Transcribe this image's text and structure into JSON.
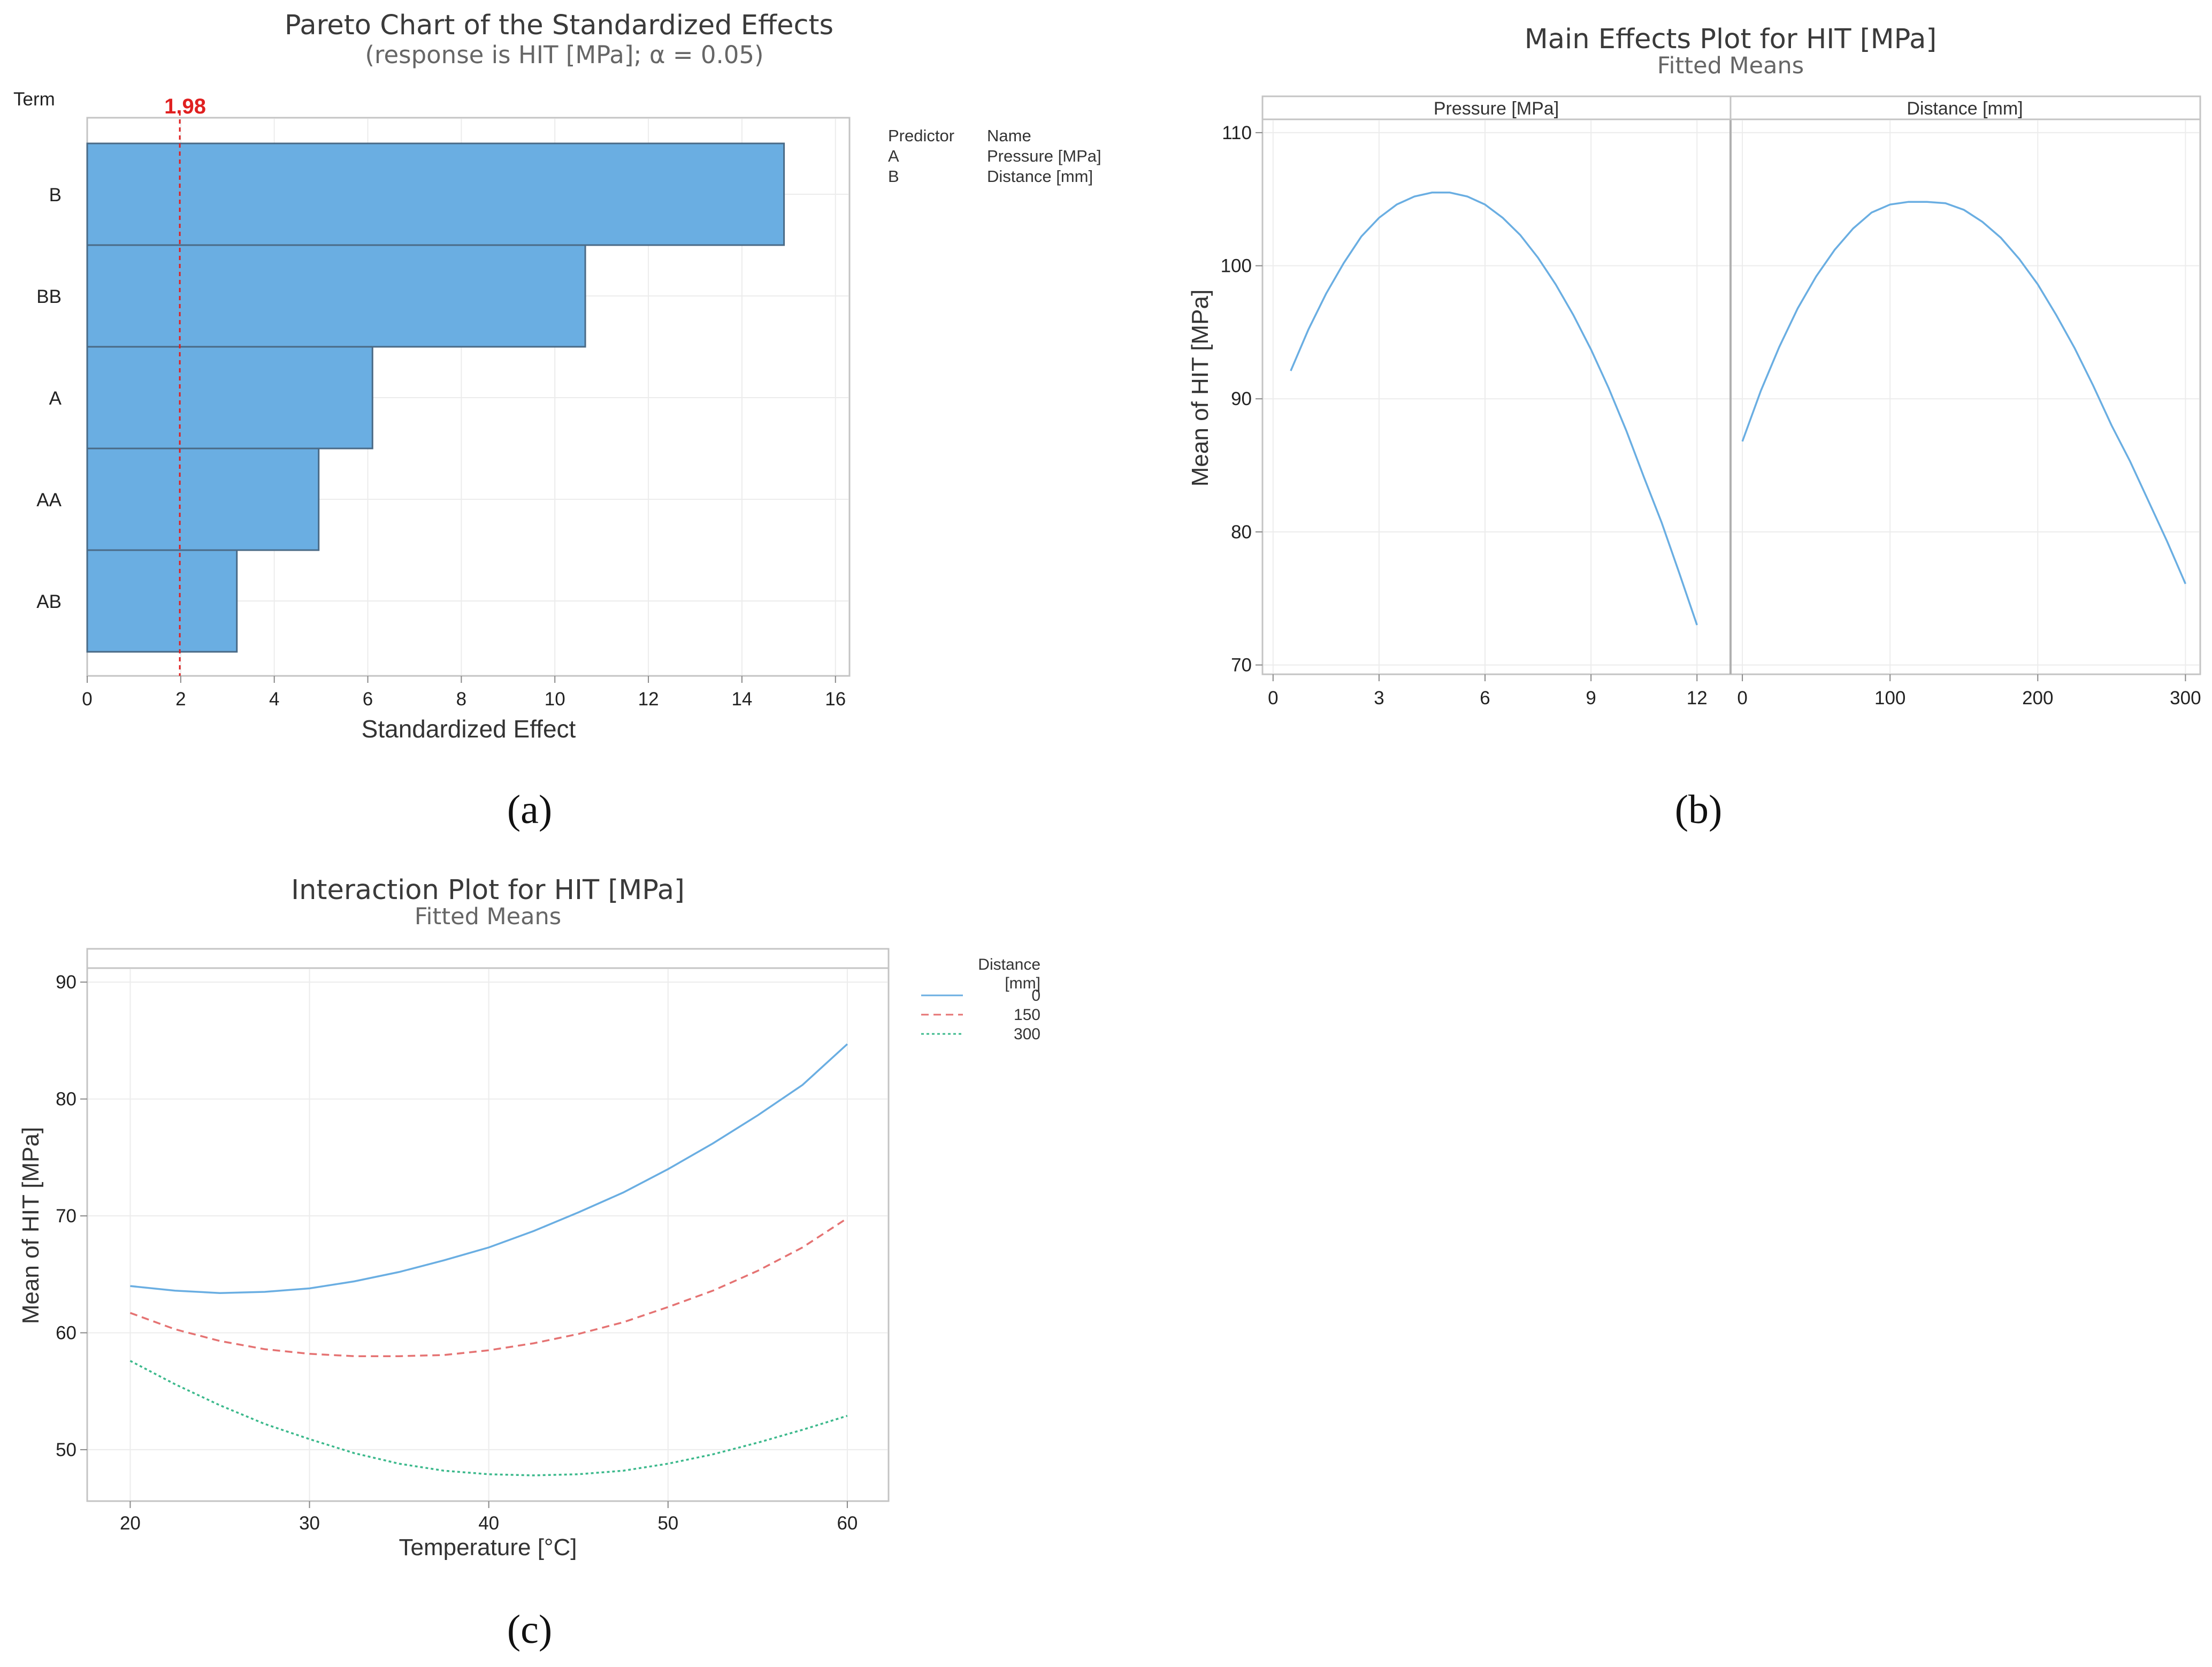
{
  "chart_data": [
    {
      "type": "bar",
      "panel_label": "(a)",
      "title": "Pareto Chart of the Standardized Effects",
      "subtitle": "(response is HIT [MPa]; α = 0.05)",
      "orientation": "horizontal",
      "y_axis_title": "Term",
      "xlabel": "Standardized Effect",
      "categories": [
        "B",
        "BB",
        "A",
        "AA",
        "AB"
      ],
      "values": [
        14.9,
        10.65,
        6.1,
        4.95,
        3.2
      ],
      "reference_line": {
        "value": 1.98,
        "label": "1.98"
      },
      "xlim": [
        0,
        16.3
      ],
      "xticks": [
        0,
        2,
        4,
        6,
        8,
        10,
        12,
        14,
        16
      ],
      "bar_color": "#6aaee2",
      "bar_edge_color": "#4a6a86",
      "reference_color": "#e02020",
      "grid": true,
      "legend": {
        "placement": "right",
        "header": [
          "Predictor",
          "Name"
        ],
        "rows": [
          [
            "A",
            "Pressure [MPa]"
          ],
          [
            "B",
            "Distance [mm]"
          ]
        ]
      }
    },
    {
      "type": "line",
      "panel_label": "(b)",
      "title": "Main Effects Plot for HIT [MPa]",
      "subtitle": "Fitted Means",
      "ylabel": "Mean of HIT [MPa]",
      "ylim": [
        69.3,
        111
      ],
      "yticks": [
        70,
        80,
        90,
        100,
        110
      ],
      "grid": true,
      "line_color": "#6aaee2",
      "facets": [
        {
          "header": "Pressure [MPa]",
          "xlim": [
            -0.3,
            12.95
          ],
          "xticks": [
            0,
            3,
            6,
            9,
            12
          ],
          "x": [
            0.5,
            1,
            1.5,
            2,
            2.5,
            3,
            3.5,
            4,
            4.5,
            5,
            5.5,
            6,
            6.5,
            7,
            7.5,
            8,
            8.5,
            9,
            9.5,
            10,
            10.5,
            11,
            11.5,
            12
          ],
          "values": [
            92.1,
            95.2,
            97.9,
            100.2,
            102.2,
            103.6,
            104.6,
            105.2,
            105.5,
            105.5,
            105.2,
            104.6,
            103.6,
            102.3,
            100.6,
            98.6,
            96.3,
            93.7,
            90.8,
            87.6,
            84.1,
            80.7,
            76.9,
            73.0
          ]
        },
        {
          "header": "Distance [mm]",
          "xlim": [
            -8,
            310
          ],
          "xticks": [
            0,
            100,
            200,
            300
          ],
          "x": [
            0,
            12.5,
            25,
            37.5,
            50,
            62.5,
            75,
            87.5,
            100,
            112.5,
            125,
            137.5,
            150,
            162.5,
            175,
            187.5,
            200,
            212.5,
            225,
            237.5,
            250,
            262.5,
            275,
            287.5,
            300
          ],
          "values": [
            86.8,
            90.6,
            93.9,
            96.8,
            99.2,
            101.2,
            102.8,
            104.0,
            104.6,
            104.8,
            104.8,
            104.7,
            104.2,
            103.3,
            102.1,
            100.5,
            98.6,
            96.3,
            93.8,
            91.0,
            88.0,
            85.3,
            82.3,
            79.3,
            76.1
          ]
        }
      ]
    },
    {
      "type": "line",
      "panel_label": "(c)",
      "title": "Interaction Plot for HIT [MPa]",
      "subtitle": "Fitted Means",
      "xlabel": "Temperature [°C]",
      "ylabel": "Mean of HIT [MPa]",
      "xlim": [
        17.6,
        62.3
      ],
      "ylim": [
        45.6,
        91.2
      ],
      "xticks": [
        20,
        30,
        40,
        50,
        60
      ],
      "yticks": [
        50,
        60,
        70,
        80,
        90
      ],
      "grid": true,
      "legend": {
        "placement": "right",
        "title": [
          "Distance",
          "[mm]"
        ]
      },
      "x": [
        20,
        22.5,
        25,
        27.5,
        30,
        32.5,
        35,
        37.5,
        40,
        42.5,
        45,
        47.5,
        50,
        52.5,
        55,
        57.5,
        60
      ],
      "series": [
        {
          "name": "0",
          "color": "#6aaee2",
          "dash": "solid",
          "values": [
            64.0,
            63.6,
            63.4,
            63.5,
            63.8,
            64.4,
            65.2,
            66.2,
            67.3,
            68.7,
            70.3,
            72.0,
            74.0,
            76.2,
            78.6,
            81.2,
            84.7
          ]
        },
        {
          "name": "150",
          "color": "#e57373",
          "dash": "dashed",
          "values": [
            61.7,
            60.3,
            59.3,
            58.6,
            58.2,
            58.0,
            58.0,
            58.1,
            58.5,
            59.1,
            59.9,
            60.9,
            62.2,
            63.6,
            65.3,
            67.3,
            69.8
          ]
        },
        {
          "name": "300",
          "color": "#3cb98c",
          "dash": "dotted",
          "values": [
            57.6,
            55.6,
            53.8,
            52.2,
            50.9,
            49.7,
            48.8,
            48.2,
            47.9,
            47.8,
            47.9,
            48.2,
            48.8,
            49.6,
            50.6,
            51.7,
            52.9
          ]
        }
      ]
    }
  ]
}
